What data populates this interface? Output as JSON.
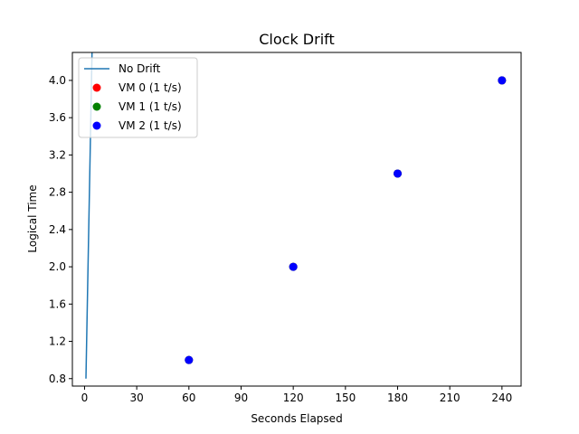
{
  "chart_data": {
    "type": "scatter",
    "title": "Clock Drift",
    "xlabel": "Seconds Elapsed",
    "ylabel": "Logical Time",
    "xlim": [
      -7,
      251
    ],
    "ylim": [
      0.72,
      4.3
    ],
    "xticks": [
      0,
      30,
      60,
      90,
      120,
      150,
      180,
      210,
      240
    ],
    "xtick_labels": [
      "0",
      "30",
      "60",
      "90",
      "120",
      "150",
      "180",
      "210",
      "240"
    ],
    "yticks": [
      0.8,
      1.2,
      1.6,
      2.0,
      2.4,
      2.8,
      3.2,
      3.6,
      4.0
    ],
    "ytick_labels": [
      "0.8",
      "1.2",
      "1.6",
      "2.0",
      "2.4",
      "2.8",
      "3.2",
      "3.6",
      "4.0"
    ],
    "grid": false,
    "legend_position": "top-left",
    "series": [
      {
        "name": "No Drift",
        "kind": "line",
        "color": "#1f77b4",
        "x": [
          0.8,
          1.6,
          2.4,
          3.2,
          4.0,
          4.8
        ],
        "y": [
          0.8,
          1.6,
          2.4,
          3.2,
          4.0,
          4.8
        ]
      },
      {
        "name": "VM 0 (1 t/s)",
        "kind": "scatter",
        "color": "#ff0000",
        "x": [
          60,
          120,
          180,
          240
        ],
        "y": [
          1,
          2,
          3,
          4
        ]
      },
      {
        "name": "VM 1 (1 t/s)",
        "kind": "scatter",
        "color": "#008000",
        "x": [
          60,
          120,
          180,
          240
        ],
        "y": [
          1,
          2,
          3,
          4
        ]
      },
      {
        "name": "VM 2 (1 t/s)",
        "kind": "scatter",
        "color": "#0000ff",
        "x": [
          60,
          120,
          180,
          240
        ],
        "y": [
          1,
          2,
          3,
          4
        ]
      }
    ]
  }
}
